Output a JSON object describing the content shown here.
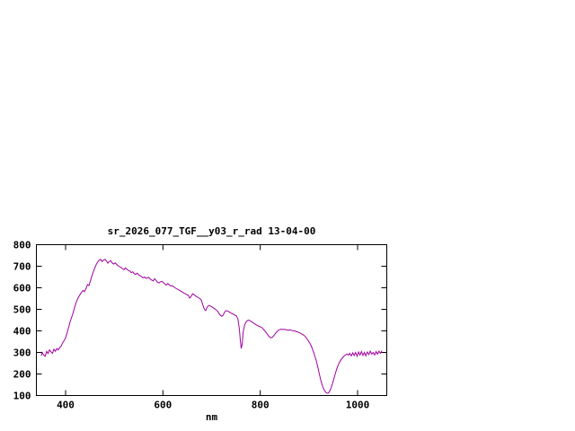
{
  "page": {
    "background": "#ffffff"
  },
  "chart_data": {
    "type": "line",
    "title": "sr_2026_077_TGF__y03_r_rad 13-04-00",
    "xlabel": "nm",
    "ylabel": "",
    "xlim": [
      340,
      1060
    ],
    "ylim": [
      100,
      800
    ],
    "x_ticks": [
      400,
      600,
      800,
      1000
    ],
    "y_ticks": [
      100,
      200,
      300,
      400,
      500,
      600,
      700,
      800
    ],
    "grid": false,
    "legend": "none",
    "line_color": "#a000a0",
    "axis_color": "#000000",
    "points": [
      [
        350,
        285
      ],
      [
        352,
        300
      ],
      [
        355,
        288
      ],
      [
        358,
        282
      ],
      [
        361,
        305
      ],
      [
        364,
        295
      ],
      [
        367,
        312
      ],
      [
        370,
        302
      ],
      [
        373,
        296
      ],
      [
        376,
        315
      ],
      [
        379,
        305
      ],
      [
        382,
        318
      ],
      [
        385,
        312
      ],
      [
        388,
        322
      ],
      [
        391,
        330
      ],
      [
        394,
        345
      ],
      [
        397,
        355
      ],
      [
        400,
        368
      ],
      [
        403,
        390
      ],
      [
        406,
        415
      ],
      [
        409,
        440
      ],
      [
        412,
        460
      ],
      [
        415,
        480
      ],
      [
        418,
        505
      ],
      [
        421,
        528
      ],
      [
        424,
        545
      ],
      [
        427,
        558
      ],
      [
        430,
        570
      ],
      [
        433,
        580
      ],
      [
        436,
        588
      ],
      [
        439,
        582
      ],
      [
        442,
        598
      ],
      [
        445,
        615
      ],
      [
        448,
        610
      ],
      [
        451,
        632
      ],
      [
        454,
        655
      ],
      [
        457,
        675
      ],
      [
        460,
        692
      ],
      [
        463,
        708
      ],
      [
        466,
        720
      ],
      [
        469,
        728
      ],
      [
        472,
        732
      ],
      [
        475,
        722
      ],
      [
        478,
        728
      ],
      [
        481,
        732
      ],
      [
        484,
        724
      ],
      [
        487,
        714
      ],
      [
        490,
        722
      ],
      [
        493,
        726
      ],
      [
        496,
        714
      ],
      [
        499,
        710
      ],
      [
        502,
        716
      ],
      [
        505,
        708
      ],
      [
        508,
        702
      ],
      [
        511,
        698
      ],
      [
        514,
        694
      ],
      [
        517,
        688
      ],
      [
        520,
        684
      ],
      [
        523,
        692
      ],
      [
        526,
        686
      ],
      [
        529,
        680
      ],
      [
        532,
        678
      ],
      [
        535,
        670
      ],
      [
        538,
        674
      ],
      [
        541,
        666
      ],
      [
        544,
        662
      ],
      [
        547,
        668
      ],
      [
        550,
        660
      ],
      [
        553,
        656
      ],
      [
        556,
        652
      ],
      [
        559,
        646
      ],
      [
        562,
        650
      ],
      [
        565,
        644
      ],
      [
        568,
        646
      ],
      [
        571,
        648
      ],
      [
        574,
        640
      ],
      [
        577,
        636
      ],
      [
        580,
        632
      ],
      [
        583,
        642
      ],
      [
        586,
        634
      ],
      [
        589,
        626
      ],
      [
        592,
        622
      ],
      [
        595,
        628
      ],
      [
        598,
        630
      ],
      [
        601,
        624
      ],
      [
        604,
        618
      ],
      [
        607,
        612
      ],
      [
        610,
        620
      ],
      [
        613,
        614
      ],
      [
        616,
        608
      ],
      [
        619,
        610
      ],
      [
        622,
        604
      ],
      [
        625,
        600
      ],
      [
        628,
        596
      ],
      [
        631,
        592
      ],
      [
        634,
        588
      ],
      [
        637,
        584
      ],
      [
        640,
        580
      ],
      [
        643,
        576
      ],
      [
        646,
        572
      ],
      [
        649,
        568
      ],
      [
        652,
        566
      ],
      [
        655,
        552
      ],
      [
        658,
        560
      ],
      [
        661,
        572
      ],
      [
        664,
        568
      ],
      [
        667,
        562
      ],
      [
        670,
        558
      ],
      [
        673,
        554
      ],
      [
        676,
        550
      ],
      [
        679,
        542
      ],
      [
        682,
        520
      ],
      [
        685,
        500
      ],
      [
        688,
        494
      ],
      [
        691,
        510
      ],
      [
        694,
        518
      ],
      [
        697,
        516
      ],
      [
        700,
        512
      ],
      [
        703,
        508
      ],
      [
        706,
        503
      ],
      [
        709,
        498
      ],
      [
        712,
        492
      ],
      [
        715,
        482
      ],
      [
        718,
        472
      ],
      [
        721,
        468
      ],
      [
        724,
        474
      ],
      [
        727,
        488
      ],
      [
        730,
        494
      ],
      [
        733,
        492
      ],
      [
        736,
        488
      ],
      [
        739,
        484
      ],
      [
        742,
        480
      ],
      [
        745,
        477
      ],
      [
        748,
        473
      ],
      [
        751,
        470
      ],
      [
        754,
        455
      ],
      [
        757,
        410
      ],
      [
        759,
        355
      ],
      [
        761,
        318
      ],
      [
        763,
        340
      ],
      [
        765,
        395
      ],
      [
        768,
        428
      ],
      [
        771,
        442
      ],
      [
        774,
        448
      ],
      [
        777,
        450
      ],
      [
        780,
        446
      ],
      [
        783,
        441
      ],
      [
        786,
        437
      ],
      [
        789,
        432
      ],
      [
        792,
        428
      ],
      [
        795,
        424
      ],
      [
        798,
        421
      ],
      [
        801,
        418
      ],
      [
        804,
        414
      ],
      [
        807,
        406
      ],
      [
        810,
        398
      ],
      [
        813,
        390
      ],
      [
        816,
        380
      ],
      [
        819,
        372
      ],
      [
        822,
        368
      ],
      [
        825,
        370
      ],
      [
        828,
        378
      ],
      [
        831,
        388
      ],
      [
        834,
        396
      ],
      [
        837,
        402
      ],
      [
        840,
        406
      ],
      [
        843,
        408
      ],
      [
        846,
        406
      ],
      [
        849,
        408
      ],
      [
        852,
        406
      ],
      [
        855,
        404
      ],
      [
        858,
        403
      ],
      [
        861,
        405
      ],
      [
        864,
        403
      ],
      [
        867,
        401
      ],
      [
        870,
        400
      ],
      [
        873,
        398
      ],
      [
        876,
        396
      ],
      [
        879,
        393
      ],
      [
        882,
        390
      ],
      [
        885,
        386
      ],
      [
        888,
        382
      ],
      [
        891,
        377
      ],
      [
        894,
        370
      ],
      [
        897,
        360
      ],
      [
        900,
        350
      ],
      [
        903,
        338
      ],
      [
        906,
        323
      ],
      [
        909,
        305
      ],
      [
        912,
        285
      ],
      [
        915,
        262
      ],
      [
        918,
        235
      ],
      [
        921,
        205
      ],
      [
        924,
        175
      ],
      [
        927,
        150
      ],
      [
        930,
        132
      ],
      [
        933,
        120
      ],
      [
        936,
        112
      ],
      [
        939,
        110
      ],
      [
        942,
        118
      ],
      [
        945,
        132
      ],
      [
        948,
        152
      ],
      [
        951,
        176
      ],
      [
        954,
        200
      ],
      [
        957,
        222
      ],
      [
        960,
        240
      ],
      [
        963,
        255
      ],
      [
        966,
        266
      ],
      [
        969,
        275
      ],
      [
        972,
        282
      ],
      [
        975,
        288
      ],
      [
        978,
        293
      ],
      [
        981,
        288
      ],
      [
        984,
        296
      ],
      [
        987,
        284
      ],
      [
        990,
        298
      ],
      [
        993,
        286
      ],
      [
        996,
        300
      ],
      [
        999,
        282
      ],
      [
        1002,
        302
      ],
      [
        1005,
        288
      ],
      [
        1008,
        304
      ],
      [
        1011,
        286
      ],
      [
        1014,
        300
      ],
      [
        1017,
        284
      ],
      [
        1020,
        302
      ],
      [
        1023,
        290
      ],
      [
        1026,
        306
      ],
      [
        1029,
        292
      ],
      [
        1032,
        300
      ],
      [
        1035,
        288
      ],
      [
        1038,
        304
      ],
      [
        1041,
        292
      ],
      [
        1044,
        306
      ],
      [
        1047,
        296
      ],
      [
        1050,
        308
      ]
    ]
  }
}
